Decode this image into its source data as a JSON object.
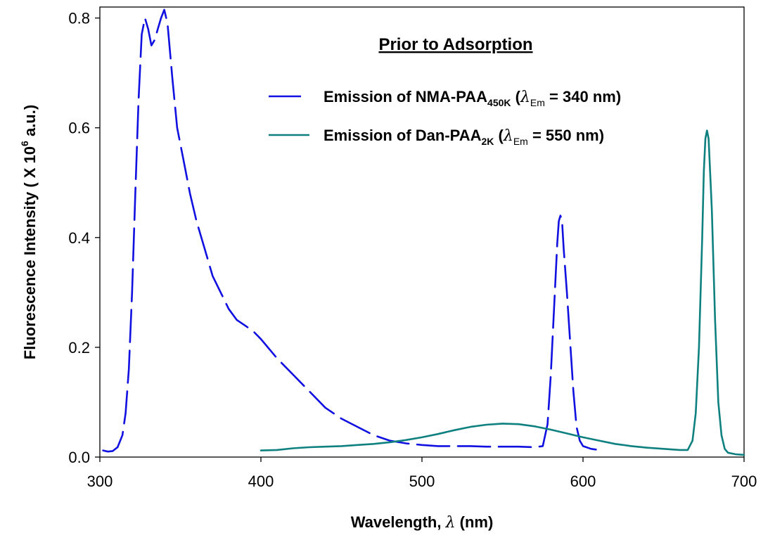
{
  "chart_data": {
    "type": "line",
    "title": "",
    "annotation": "Prior to Adsorption",
    "xlabel": {
      "prefix": "Wavelength, ",
      "symbol": "λ",
      "suffix": " (nm)"
    },
    "ylabel": {
      "base": "Fluorescence Intensity ( X 10",
      "exponent": "6",
      "end": " a.u.)"
    },
    "xlim": [
      300,
      700
    ],
    "ylim": [
      0.0,
      0.82
    ],
    "xticks": [
      "300",
      "400",
      "500",
      "600",
      "700"
    ],
    "yticks": [
      "0.0",
      "0.2",
      "0.4",
      "0.6",
      "0.8"
    ],
    "legend_position": "top-right",
    "grid": false,
    "series": [
      {
        "name": "Emission of NMA-PAA450K (λEm = 340 nm)",
        "legend": {
          "prefix": "Emission of NMA-PAA",
          "subscript": "450K",
          "middle": " (",
          "symbol": "λ",
          "symbol_sub": "Em",
          "suffix": " = 340 nm)"
        },
        "color": "#1010e0",
        "dash": true,
        "x": [
          302,
          305,
          308,
          311,
          314,
          316,
          318,
          320,
          322,
          324,
          326,
          328,
          330,
          332,
          334,
          336,
          338,
          340,
          342,
          345,
          348,
          352,
          356,
          360,
          365,
          370,
          375,
          380,
          385,
          390,
          395,
          400,
          410,
          420,
          430,
          440,
          450,
          460,
          470,
          480,
          490,
          500,
          510,
          520,
          530,
          540,
          550,
          560,
          570,
          575,
          578,
          580,
          582,
          584,
          585,
          586,
          587,
          588,
          590,
          592,
          594,
          596,
          598,
          600,
          605,
          610
        ],
        "y": [
          0.012,
          0.01,
          0.011,
          0.018,
          0.04,
          0.08,
          0.16,
          0.3,
          0.48,
          0.65,
          0.77,
          0.8,
          0.78,
          0.75,
          0.76,
          0.78,
          0.8,
          0.815,
          0.79,
          0.69,
          0.6,
          0.54,
          0.48,
          0.43,
          0.38,
          0.33,
          0.3,
          0.27,
          0.25,
          0.24,
          0.23,
          0.215,
          0.18,
          0.15,
          0.12,
          0.09,
          0.07,
          0.055,
          0.04,
          0.03,
          0.025,
          0.022,
          0.02,
          0.02,
          0.02,
          0.019,
          0.019,
          0.019,
          0.018,
          0.02,
          0.06,
          0.15,
          0.27,
          0.39,
          0.43,
          0.44,
          0.43,
          0.38,
          0.3,
          0.21,
          0.12,
          0.055,
          0.03,
          0.02,
          0.015,
          0.013
        ]
      },
      {
        "name": "Emission of Dan-PAA2K (λEm = 550 nm)",
        "legend": {
          "prefix": "Emission of Dan-PAA",
          "subscript": "2K",
          "middle": " (",
          "symbol": "λ",
          "symbol_sub": "Em",
          "suffix": " = 550 nm)"
        },
        "color": "#0e8080",
        "dash": false,
        "x": [
          400,
          410,
          420,
          430,
          440,
          450,
          460,
          470,
          480,
          490,
          500,
          510,
          520,
          530,
          540,
          550,
          560,
          570,
          580,
          590,
          600,
          610,
          620,
          630,
          640,
          650,
          660,
          665,
          668,
          670,
          672,
          674,
          675,
          676,
          677,
          678,
          680,
          682,
          684,
          686,
          688,
          690,
          695,
          700
        ],
        "y": [
          0.012,
          0.013,
          0.016,
          0.018,
          0.019,
          0.02,
          0.022,
          0.024,
          0.027,
          0.031,
          0.036,
          0.042,
          0.049,
          0.055,
          0.059,
          0.061,
          0.06,
          0.056,
          0.05,
          0.043,
          0.036,
          0.03,
          0.024,
          0.02,
          0.017,
          0.015,
          0.013,
          0.013,
          0.03,
          0.08,
          0.2,
          0.4,
          0.52,
          0.58,
          0.595,
          0.58,
          0.45,
          0.25,
          0.1,
          0.04,
          0.015,
          0.008,
          0.005,
          0.004
        ]
      }
    ]
  }
}
